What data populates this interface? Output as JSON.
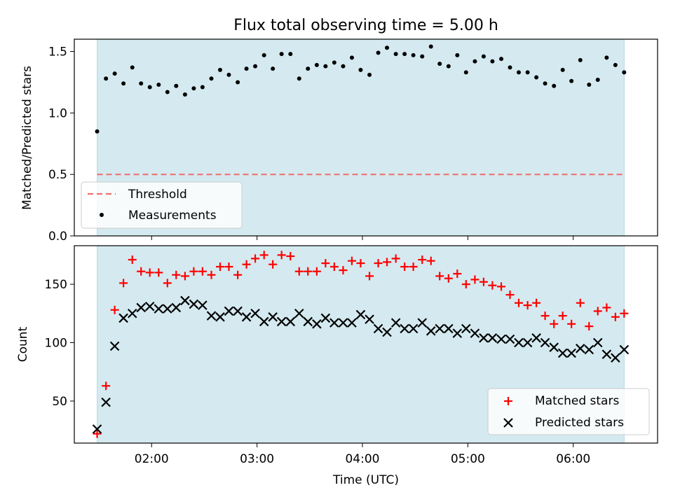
{
  "title": "Flux total observing time = 5.00 h",
  "colors": {
    "shade": "#d4eaf0",
    "shade_edge": "#b7d9e3",
    "threshold": "#f07070",
    "matched": "#ff0000",
    "predicted": "#000000",
    "measurement": "#000000"
  },
  "chart_data": [
    {
      "type": "scatter",
      "ylabel": "Matched/Predicted stars",
      "xlim": [
        1.2667,
        6.8
      ],
      "ylim": [
        0,
        1.6
      ],
      "yticks": [
        0.0,
        0.5,
        1.0,
        1.5
      ],
      "yticklabels": [
        "0.0",
        "0.5",
        "1.0",
        "1.5"
      ],
      "shaded_span": [
        1.4833,
        6.4833
      ],
      "threshold": {
        "name": "Threshold",
        "value": 0.5
      },
      "measurements": {
        "name": "Measurements",
        "x": [
          1.483,
          1.567,
          1.65,
          1.733,
          1.817,
          1.9,
          1.983,
          2.067,
          2.15,
          2.233,
          2.317,
          2.4,
          2.483,
          2.567,
          2.65,
          2.733,
          2.817,
          2.9,
          2.983,
          3.067,
          3.15,
          3.233,
          3.317,
          3.4,
          3.483,
          3.567,
          3.65,
          3.733,
          3.817,
          3.9,
          3.983,
          4.067,
          4.15,
          4.233,
          4.317,
          4.4,
          4.483,
          4.567,
          4.65,
          4.733,
          4.817,
          4.9,
          4.983,
          5.067,
          5.15,
          5.233,
          5.317,
          5.4,
          5.483,
          5.567,
          5.65,
          5.733,
          5.817,
          5.9,
          5.983,
          6.067,
          6.15,
          6.233,
          6.317,
          6.4,
          6.483
        ],
        "y": [
          0.85,
          1.28,
          1.32,
          1.24,
          1.37,
          1.24,
          1.21,
          1.23,
          1.17,
          1.22,
          1.15,
          1.2,
          1.21,
          1.28,
          1.35,
          1.31,
          1.25,
          1.36,
          1.38,
          1.47,
          1.36,
          1.48,
          1.48,
          1.28,
          1.36,
          1.39,
          1.38,
          1.41,
          1.38,
          1.45,
          1.35,
          1.31,
          1.49,
          1.53,
          1.48,
          1.48,
          1.47,
          1.46,
          1.54,
          1.4,
          1.38,
          1.47,
          1.33,
          1.42,
          1.46,
          1.42,
          1.44,
          1.37,
          1.33,
          1.33,
          1.29,
          1.24,
          1.22,
          1.35,
          1.26,
          1.43,
          1.23,
          1.27,
          1.45,
          1.39,
          1.33
        ]
      },
      "legend": {
        "position": "lower left",
        "entries": [
          "Threshold",
          "Measurements"
        ]
      }
    },
    {
      "type": "scatter",
      "ylabel": "Count",
      "xlabel": "Time (UTC)",
      "xlim": [
        1.2667,
        6.8
      ],
      "ylim": [
        14,
        183
      ],
      "yticks": [
        50,
        100,
        150
      ],
      "yticklabels": [
        "50",
        "100",
        "150"
      ],
      "xticks": [
        2,
        3,
        4,
        5,
        6
      ],
      "xticklabels": [
        "02:00",
        "03:00",
        "04:00",
        "05:00",
        "06:00"
      ],
      "shaded_span": [
        1.4833,
        6.4833
      ],
      "x": [
        1.483,
        1.567,
        1.65,
        1.733,
        1.817,
        1.9,
        1.983,
        2.067,
        2.15,
        2.233,
        2.317,
        2.4,
        2.483,
        2.567,
        2.65,
        2.733,
        2.817,
        2.9,
        2.983,
        3.067,
        3.15,
        3.233,
        3.317,
        3.4,
        3.483,
        3.567,
        3.65,
        3.733,
        3.817,
        3.9,
        3.983,
        4.067,
        4.15,
        4.233,
        4.317,
        4.4,
        4.483,
        4.567,
        4.65,
        4.733,
        4.817,
        4.9,
        4.983,
        5.067,
        5.15,
        5.233,
        5.317,
        5.4,
        5.483,
        5.567,
        5.65,
        5.733,
        5.817,
        5.9,
        5.983,
        6.067,
        6.15,
        6.233,
        6.317,
        6.4,
        6.483
      ],
      "series": [
        {
          "name": "Matched stars",
          "marker": "plus",
          "values": [
            22,
            63,
            128,
            151,
            171,
            161,
            160,
            160,
            151,
            158,
            157,
            161,
            161,
            158,
            165,
            165,
            158,
            167,
            172,
            175,
            167,
            175,
            174,
            161,
            161,
            161,
            168,
            165,
            162,
            170,
            168,
            157,
            168,
            169,
            172,
            165,
            165,
            171,
            170,
            157,
            155,
            159,
            150,
            154,
            152,
            149,
            148,
            141,
            134,
            132,
            134,
            123,
            116,
            123,
            116,
            134,
            114,
            127,
            130,
            122,
            125
          ]
        },
        {
          "name": "Predicted stars",
          "marker": "x",
          "values": [
            26,
            49,
            97,
            121,
            125,
            130,
            131,
            129,
            129,
            130,
            136,
            133,
            132,
            123,
            122,
            127,
            127,
            122,
            125,
            118,
            122,
            118,
            118,
            125,
            118,
            116,
            121,
            117,
            117,
            117,
            124,
            120,
            112,
            109,
            117,
            112,
            112,
            117,
            110,
            112,
            112,
            108,
            112,
            108,
            104,
            104,
            103,
            103,
            100,
            100,
            104,
            100,
            96,
            91,
            91,
            95,
            94,
            100,
            90,
            87,
            94
          ]
        }
      ],
      "legend": {
        "position": "lower right",
        "entries": [
          "Matched stars",
          "Predicted stars"
        ]
      }
    }
  ]
}
